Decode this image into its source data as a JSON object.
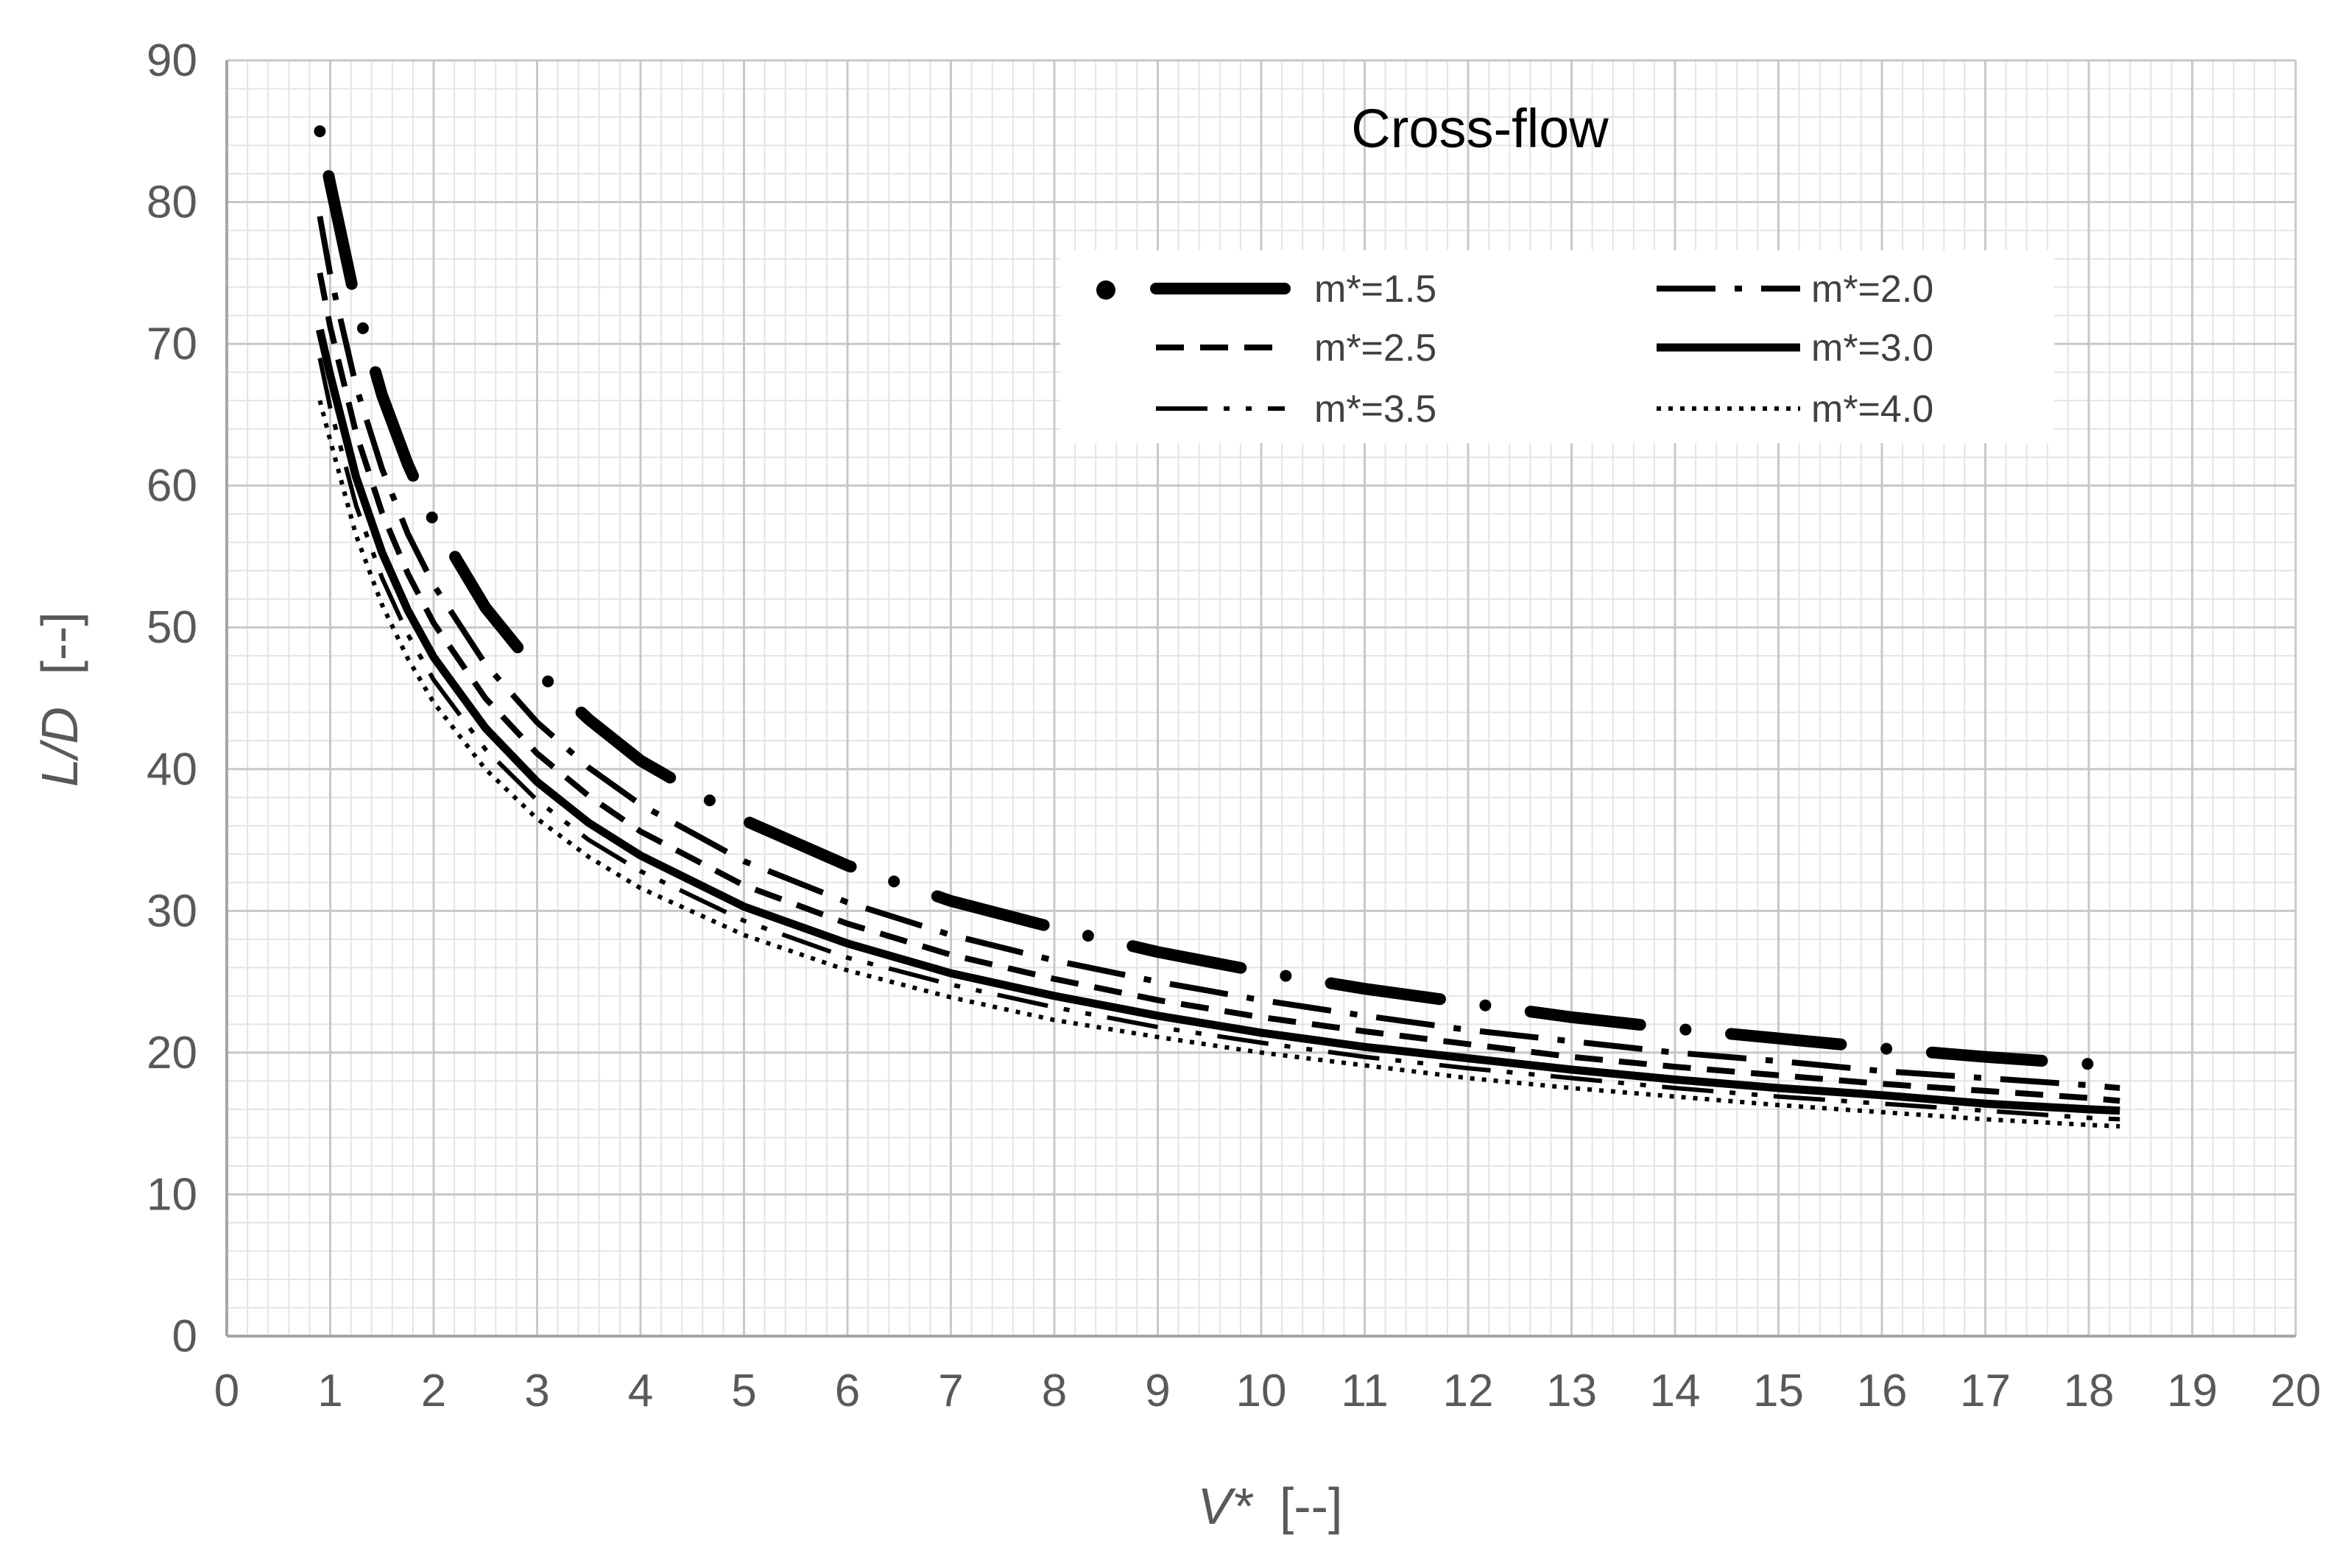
{
  "chart_data": {
    "type": "line",
    "title": "Cross-flow",
    "xlabel_italic": "V*",
    "xlabel_unit": "[--]",
    "ylabel_italic": "L/D",
    "ylabel_unit": "[--]",
    "xlim": [
      0,
      20
    ],
    "ylim": [
      0,
      90
    ],
    "xticks": [
      "0",
      "1",
      "2",
      "3",
      "4",
      "5",
      "6",
      "7",
      "8",
      "9",
      "10",
      "11",
      "12",
      "13",
      "14",
      "15",
      "16",
      "17",
      "18",
      "19",
      "20"
    ],
    "yticks": [
      "0",
      "10",
      "20",
      "30",
      "40",
      "50",
      "60",
      "70",
      "80",
      "90"
    ],
    "grid": true,
    "minor_grid": true,
    "legend_position": "top-right",
    "series": [
      {
        "name": "m*=1.5",
        "style": "dot-longdash-thick",
        "x": [
          0.9,
          1,
          1.25,
          1.5,
          1.75,
          2,
          2.5,
          3,
          3.5,
          4,
          5,
          6,
          7,
          8,
          9,
          10,
          11,
          12,
          13,
          14,
          15,
          16,
          17,
          18,
          18.3
        ],
        "y": [
          85,
          81.3,
          72.8,
          66.4,
          61.5,
          57.5,
          51.4,
          46.9,
          43.5,
          40.6,
          36.4,
          33.2,
          30.7,
          28.8,
          27.1,
          25.7,
          24.5,
          23.5,
          22.5,
          21.7,
          21.0,
          20.3,
          19.7,
          19.2,
          19.0
        ]
      },
      {
        "name": "m*=2.0",
        "style": "longdash-dot",
        "x": [
          0.9,
          1,
          1.25,
          1.5,
          1.75,
          2,
          2.5,
          3,
          3.5,
          4,
          5,
          6,
          7,
          8,
          9,
          10,
          11,
          12,
          13,
          14,
          15,
          16,
          17,
          18,
          18.3
        ],
        "y": [
          79,
          74.9,
          67.0,
          61.2,
          56.6,
          53.0,
          47.4,
          43.3,
          40.1,
          37.5,
          33.5,
          30.6,
          28.3,
          26.5,
          25.0,
          23.7,
          22.6,
          21.6,
          20.8,
          20.0,
          19.4,
          18.7,
          18.2,
          17.7,
          17.5
        ]
      },
      {
        "name": "m*=2.5",
        "style": "dash",
        "x": [
          0.9,
          1,
          1.25,
          1.5,
          1.75,
          2,
          2.5,
          3,
          3.5,
          4,
          5,
          6,
          7,
          8,
          9,
          10,
          11,
          12,
          13,
          14,
          15,
          16,
          17,
          18,
          18.3
        ],
        "y": [
          75,
          71.2,
          63.7,
          58.1,
          53.8,
          50.3,
          45.0,
          41.1,
          38.1,
          35.6,
          31.8,
          29.1,
          26.9,
          25.2,
          23.7,
          22.5,
          21.5,
          20.6,
          19.7,
          19.0,
          18.4,
          17.8,
          17.3,
          16.8,
          16.6
        ]
      },
      {
        "name": "m*=3.0",
        "style": "solid-thick",
        "x": [
          0.9,
          1,
          1.25,
          1.5,
          1.75,
          2,
          2.5,
          3,
          3.5,
          4,
          5,
          6,
          7,
          8,
          9,
          10,
          11,
          12,
          13,
          14,
          15,
          16,
          17,
          18,
          18.3
        ],
        "y": [
          71,
          67.8,
          60.6,
          55.3,
          51.2,
          47.9,
          42.9,
          39.1,
          36.2,
          33.9,
          30.3,
          27.7,
          25.6,
          24.0,
          22.6,
          21.4,
          20.4,
          19.6,
          18.8,
          18.1,
          17.5,
          17.0,
          16.4,
          16.0,
          15.9
        ]
      },
      {
        "name": "m*=3.5",
        "style": "longdash-dot-dot",
        "x": [
          0.9,
          1,
          1.25,
          1.5,
          1.75,
          2,
          2.5,
          3,
          3.5,
          4,
          5,
          6,
          7,
          8,
          9,
          10,
          11,
          12,
          13,
          14,
          15,
          16,
          17,
          18,
          18.3
        ],
        "y": [
          69,
          65.5,
          58.6,
          53.5,
          49.5,
          46.3,
          41.4,
          37.8,
          35.0,
          32.8,
          29.3,
          26.7,
          24.8,
          23.2,
          21.8,
          20.7,
          19.7,
          18.9,
          18.2,
          17.5,
          16.9,
          16.4,
          15.9,
          15.4,
          15.3
        ]
      },
      {
        "name": "m*=4.0",
        "style": "dotted",
        "x": [
          0.9,
          1,
          1.25,
          1.5,
          1.75,
          2,
          2.5,
          3,
          3.5,
          4,
          5,
          6,
          7,
          8,
          9,
          10,
          11,
          12,
          13,
          14,
          15,
          16,
          17,
          18,
          18.3
        ],
        "y": [
          66,
          63.2,
          56.5,
          51.6,
          47.8,
          44.7,
          40.0,
          36.5,
          33.8,
          31.6,
          28.3,
          25.8,
          23.9,
          22.3,
          21.1,
          20.0,
          19.1,
          18.2,
          17.5,
          16.9,
          16.3,
          15.8,
          15.3,
          14.9,
          14.8
        ]
      }
    ]
  }
}
